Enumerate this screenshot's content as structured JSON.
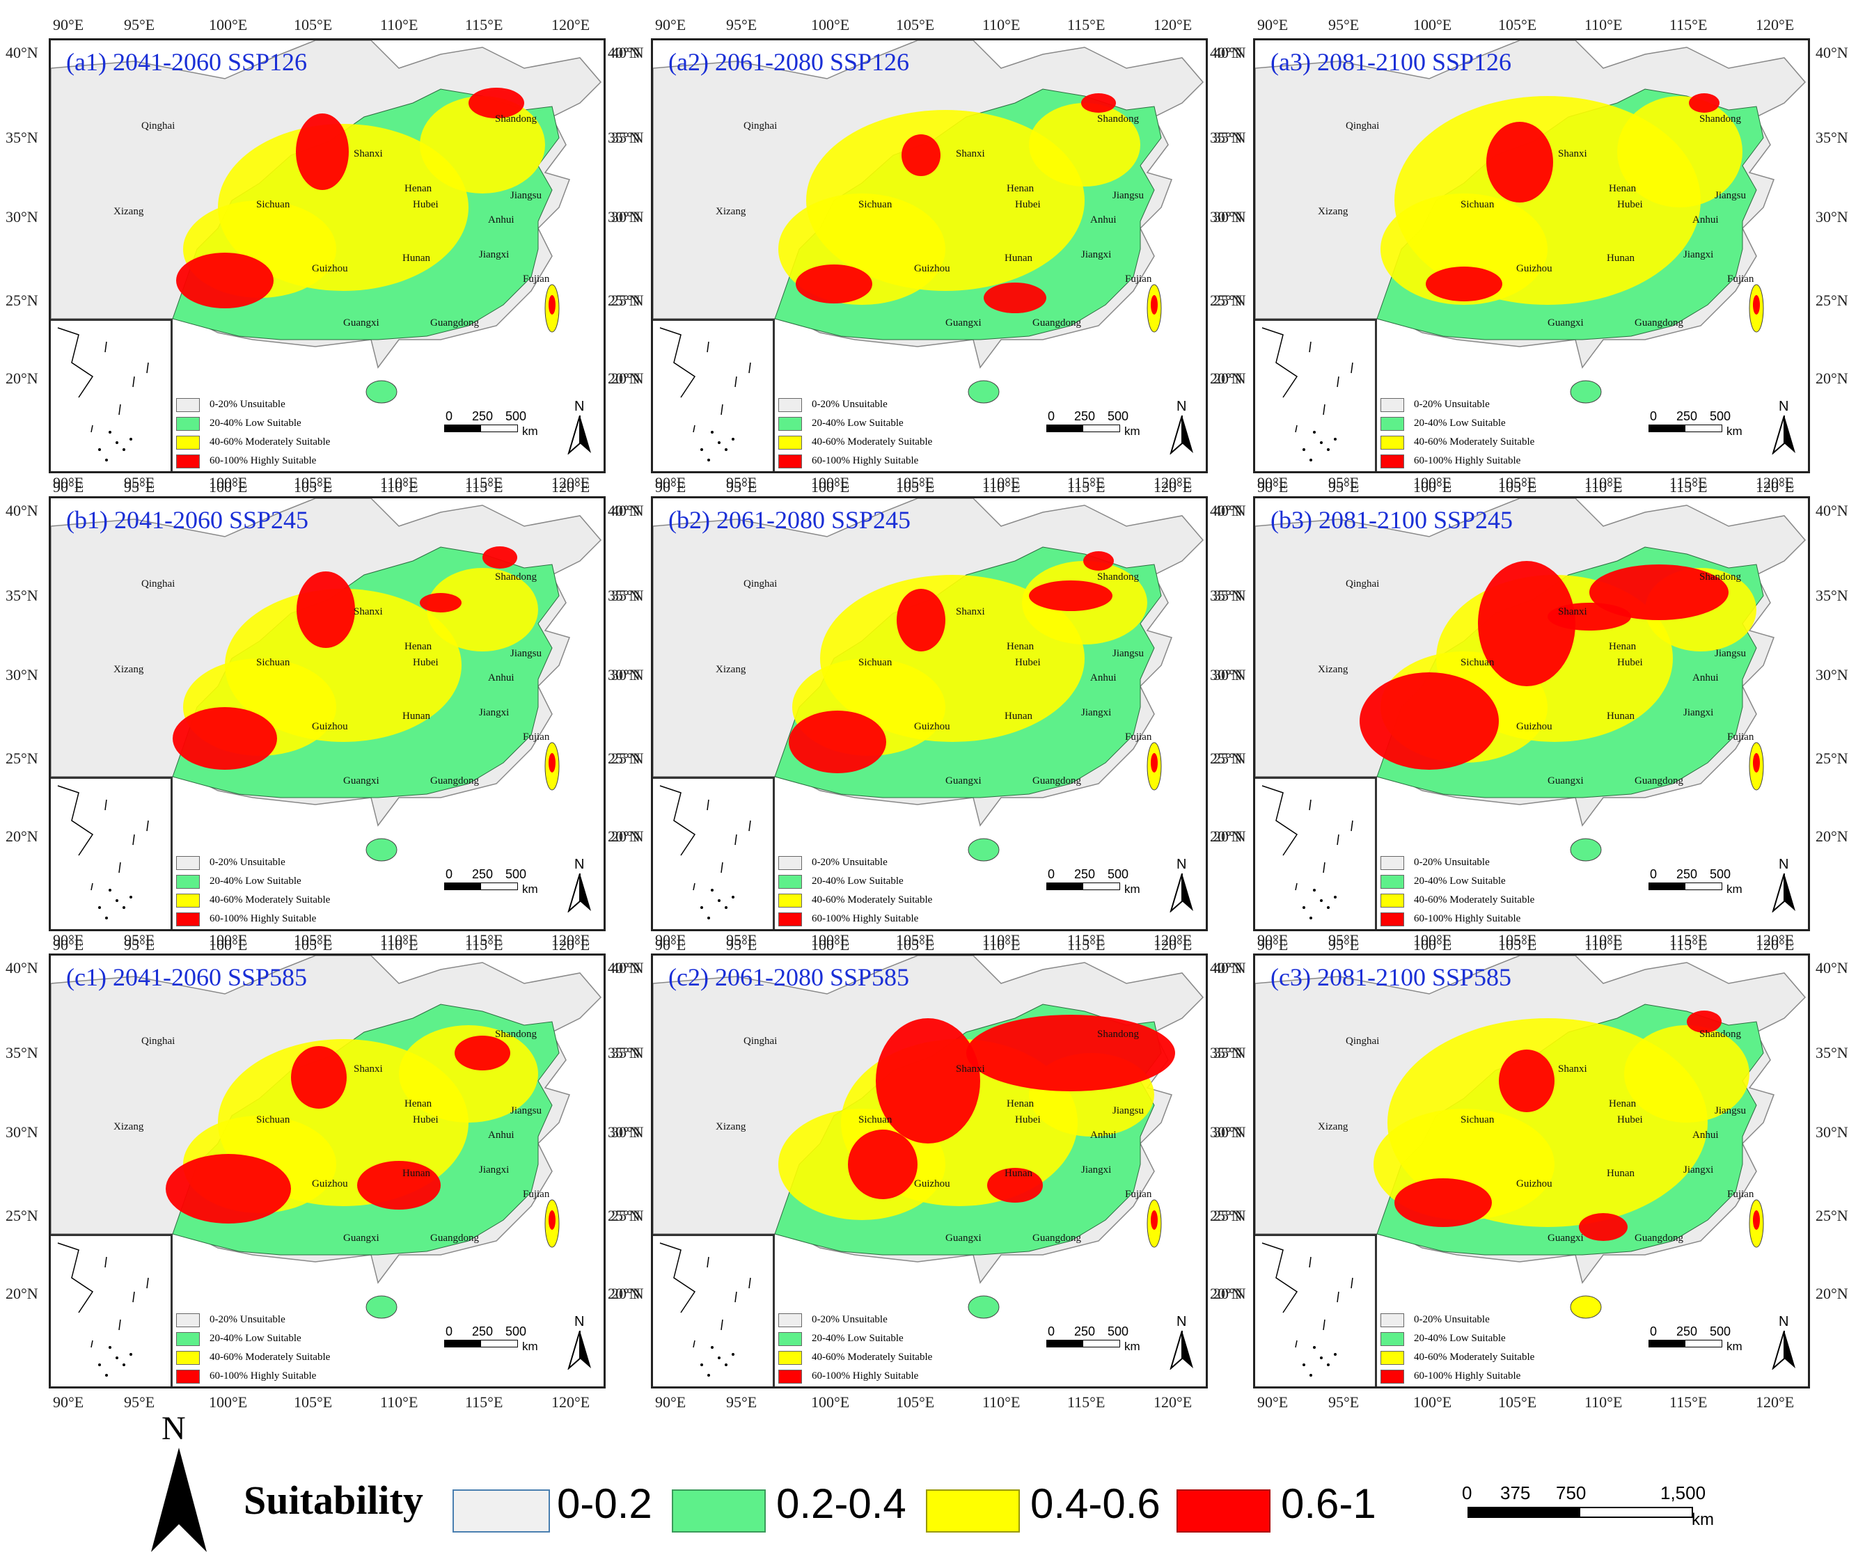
{
  "x_ticks": [
    "90°E",
    "95°E",
    "100°E",
    "105°E",
    "110°E",
    "115°E",
    "120°E"
  ],
  "y_ticks": [
    "40°N",
    "35°N",
    "30°N",
    "25°N",
    "20°N"
  ],
  "provinces": [
    "Qinghai",
    "Xizang",
    "Sichuan",
    "Shanxi",
    "Henan",
    "Shandong",
    "Hubei",
    "Anhui",
    "Jiangsu",
    "Guizhou",
    "Hunan",
    "Jiangxi",
    "Fujian",
    "Guangxi",
    "Guangdong"
  ],
  "panels": [
    {
      "title": "(a1) 2041-2060 SSP126",
      "scenario": "SSP126",
      "period": "2041-2060"
    },
    {
      "title": "(a2) 2061-2080 SSP126",
      "scenario": "SSP126",
      "period": "2061-2080"
    },
    {
      "title": "(a3) 2081-2100 SSP126",
      "scenario": "SSP126",
      "period": "2081-2100"
    },
    {
      "title": "(b1) 2041-2060 SSP245",
      "scenario": "SSP245",
      "period": "2041-2060"
    },
    {
      "title": "(b2) 2061-2080 SSP245",
      "scenario": "SSP245",
      "period": "2061-2080"
    },
    {
      "title": "(b3) 2081-2100 SSP245",
      "scenario": "SSP245",
      "period": "2081-2100"
    },
    {
      "title": "(c1) 2041-2060 SSP585",
      "scenario": "SSP585",
      "period": "2041-2060"
    },
    {
      "title": "(c2) 2061-2080 SSP585",
      "scenario": "SSP585",
      "period": "2061-2080"
    },
    {
      "title": "(c3) 2081-2100 SSP585",
      "scenario": "SSP585",
      "period": "2081-2100"
    }
  ],
  "panel_legend": [
    {
      "label": "0-20%  Unsuitable",
      "color": "#eeeeee"
    },
    {
      "label": "20-40%  Low Suitable",
      "color": "#5ef08a"
    },
    {
      "label": "40-60%  Moderately Suitable",
      "color": "#ffff00"
    },
    {
      "label": "60-100% Highly Suitable",
      "color": "#ff0000"
    }
  ],
  "panel_scale": {
    "labels": [
      "0",
      "250",
      "500"
    ],
    "unit": "km"
  },
  "north_label": "N",
  "bottom_legend": {
    "title": "Suitability",
    "classes": [
      {
        "label": "0-0.2",
        "color": "#f0f0f0"
      },
      {
        "label": "0.2-0.4",
        "color": "#5ef08a"
      },
      {
        "label": "0.4-0.6",
        "color": "#ffff00"
      },
      {
        "label": "0.6-1",
        "color": "#ff0000"
      }
    ]
  },
  "bottom_scale": {
    "labels": [
      "0",
      "375",
      "750",
      "1,500"
    ],
    "unit": "km"
  }
}
